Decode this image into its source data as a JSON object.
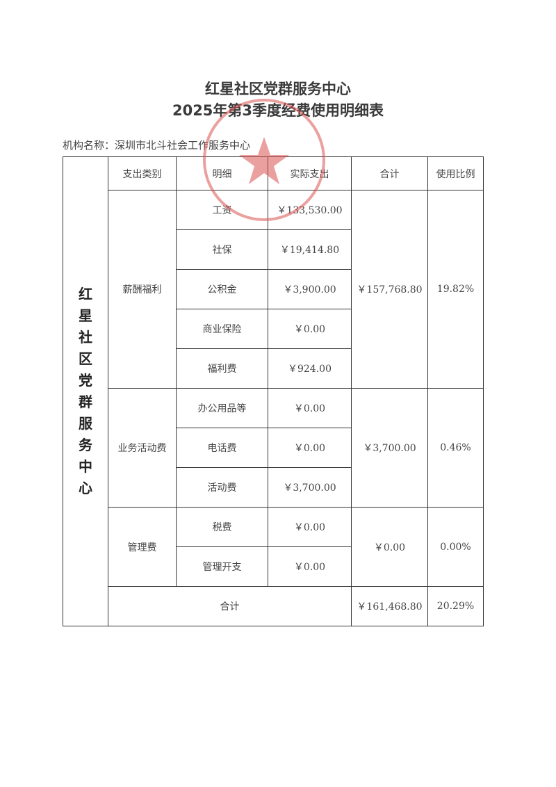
{
  "title_line1": "红星社区党群服务中心",
  "title_line2": "2025年第3季度经费使用明细表",
  "org_label": "机构名称：深圳市北斗社会工作服务中心",
  "stamp_text": "深圳市北斗社会工作服务中心",
  "stamp_color": "#d9534f",
  "side_label": [
    "红",
    "星",
    "社",
    "区",
    "党",
    "群",
    "服",
    "务",
    "中",
    "心"
  ],
  "headers": [
    "支出类别",
    "明细",
    "实际支出",
    "合计",
    "使用比例"
  ],
  "groups": [
    {
      "category": "薪酬福利",
      "total": "￥157,768.80",
      "ratio": "19.82%",
      "items": [
        {
          "name": "工资",
          "amount": "￥133,530.00"
        },
        {
          "name": "社保",
          "amount": "￥19,414.80"
        },
        {
          "name": "公积金",
          "amount": "￥3,900.00"
        },
        {
          "name": "商业保险",
          "amount": "￥0.00"
        },
        {
          "name": "福利费",
          "amount": "￥924.00"
        }
      ]
    },
    {
      "category": "业务活动费",
      "total": "￥3,700.00",
      "ratio": "0.46%",
      "items": [
        {
          "name": "办公用品等",
          "amount": "￥0.00"
        },
        {
          "name": "电话费",
          "amount": "￥0.00"
        },
        {
          "name": "活动费",
          "amount": "￥3,700.00"
        }
      ]
    },
    {
      "category": "管理费",
      "total": "￥0.00",
      "ratio": "0.00%",
      "items": [
        {
          "name": "税费",
          "amount": "￥0.00"
        },
        {
          "name": "管理开支",
          "amount": "￥0.00"
        }
      ]
    }
  ],
  "grand_total": {
    "label": "合计",
    "total": "￥161,468.80",
    "ratio": "20.29%"
  }
}
